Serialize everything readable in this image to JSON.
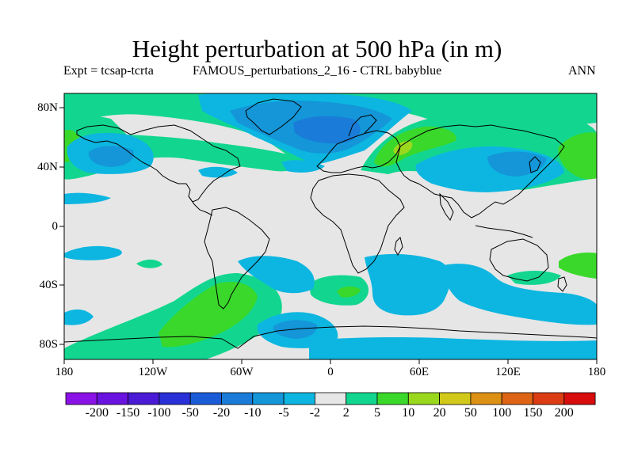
{
  "title": "Height perturbation at 500 hPa (in m)",
  "subtitle_left": "Expt = tcsap-tcrta",
  "subtitle_middle": "FAMOUS_perturbations_2_16 - CTRL babyblue",
  "subtitle_right": "ANN",
  "lat_labels": [
    "80N",
    "40N",
    "0",
    "40S",
    "80S"
  ],
  "lon_labels": [
    "180",
    "120W",
    "60W",
    "0",
    "60E",
    "120E",
    "180"
  ],
  "colorbar": {
    "labels": [
      "-200",
      "-150",
      "-100",
      "-50",
      "-20",
      "-10",
      "-5",
      "-2",
      "2",
      "5",
      "10",
      "20",
      "50",
      "100",
      "150",
      "200"
    ],
    "colors": [
      "#8a12e6",
      "#6a12e0",
      "#4a1ad6",
      "#2a30d8",
      "#1a5cd8",
      "#1a7cd8",
      "#1496d8",
      "#0cb6e0",
      "#e6e6e6",
      "#12d690",
      "#3ad82a",
      "#9ad81e",
      "#d2c81a",
      "#dc9014",
      "#dc6414",
      "#dc3c14",
      "#d80c0c"
    ]
  },
  "map": {
    "colors": {
      "background": "#e6e6e6",
      "neg_weak": "#0cb6e0",
      "neg_mid": "#1496d8",
      "neg_strong": "#1a7cd8",
      "pos_weak": "#12d690",
      "pos_mid": "#3ad82a",
      "pos_strong": "#9ad81e"
    }
  }
}
